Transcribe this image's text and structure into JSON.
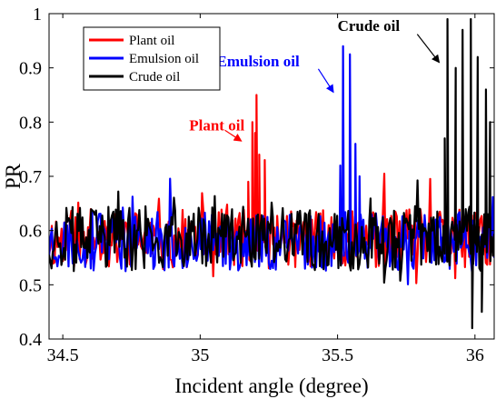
{
  "chart_data": {
    "type": "line",
    "xlabel": "Incident angle (degree)",
    "ylabel": "PR",
    "xlim": [
      34.45,
      36.07
    ],
    "ylim": [
      0.4,
      1.0
    ],
    "xticks": [
      "34.5",
      "35",
      "35.5",
      "36"
    ],
    "yticks": [
      "0.4",
      "0.5",
      "0.6",
      "0.7",
      "0.8",
      "0.9",
      "1"
    ],
    "legend_position": "top-left",
    "grid": false,
    "series": [
      {
        "name": "Plant oil",
        "color": "#ff0000",
        "baseline": 0.585,
        "noise": 0.055,
        "samples": 320,
        "seed": 11,
        "peaks": [
          {
            "x": 35.175,
            "y": 0.69
          },
          {
            "x": 35.19,
            "y": 0.8
          },
          {
            "x": 35.2,
            "y": 0.78
          },
          {
            "x": 35.205,
            "y": 0.85
          },
          {
            "x": 35.215,
            "y": 0.74
          },
          {
            "x": 35.235,
            "y": 0.73
          }
        ]
      },
      {
        "name": "Emulsion oil",
        "color": "#0000ff",
        "baseline": 0.58,
        "noise": 0.055,
        "samples": 320,
        "seed": 23,
        "peaks": [
          {
            "x": 35.51,
            "y": 0.72
          },
          {
            "x": 35.52,
            "y": 0.94
          },
          {
            "x": 35.545,
            "y": 0.925
          },
          {
            "x": 35.565,
            "y": 0.76
          },
          {
            "x": 35.58,
            "y": 0.7
          }
        ]
      },
      {
        "name": "Crude oil",
        "color": "#000000",
        "baseline": 0.585,
        "noise": 0.06,
        "samples": 360,
        "seed": 37,
        "peaks": [
          {
            "x": 35.89,
            "y": 0.77
          },
          {
            "x": 35.9,
            "y": 0.99
          },
          {
            "x": 35.93,
            "y": 0.9
          },
          {
            "x": 35.955,
            "y": 0.97
          },
          {
            "x": 35.985,
            "y": 0.99
          },
          {
            "x": 35.99,
            "y": 0.42
          },
          {
            "x": 36.01,
            "y": 0.92
          },
          {
            "x": 36.025,
            "y": 0.45
          },
          {
            "x": 36.04,
            "y": 0.86
          },
          {
            "x": 36.055,
            "y": 0.8
          }
        ]
      }
    ],
    "annotations": [
      {
        "text": "Plant oil",
        "color": "#ff0000",
        "text_x": 34.96,
        "text_y": 0.785,
        "arrow_from": [
          35.09,
          0.785
        ],
        "arrow_to": [
          35.15,
          0.765
        ]
      },
      {
        "text": "Emulsion oil",
        "color": "#0000ff",
        "text_x": 35.06,
        "text_y": 0.903,
        "arrow_from": [
          35.43,
          0.898
        ],
        "arrow_to": [
          35.485,
          0.855
        ]
      },
      {
        "text": "Crude oil",
        "color": "#000000",
        "text_x": 35.5,
        "text_y": 0.968,
        "arrow_from": [
          35.79,
          0.962
        ],
        "arrow_to": [
          35.87,
          0.91
        ]
      }
    ]
  }
}
